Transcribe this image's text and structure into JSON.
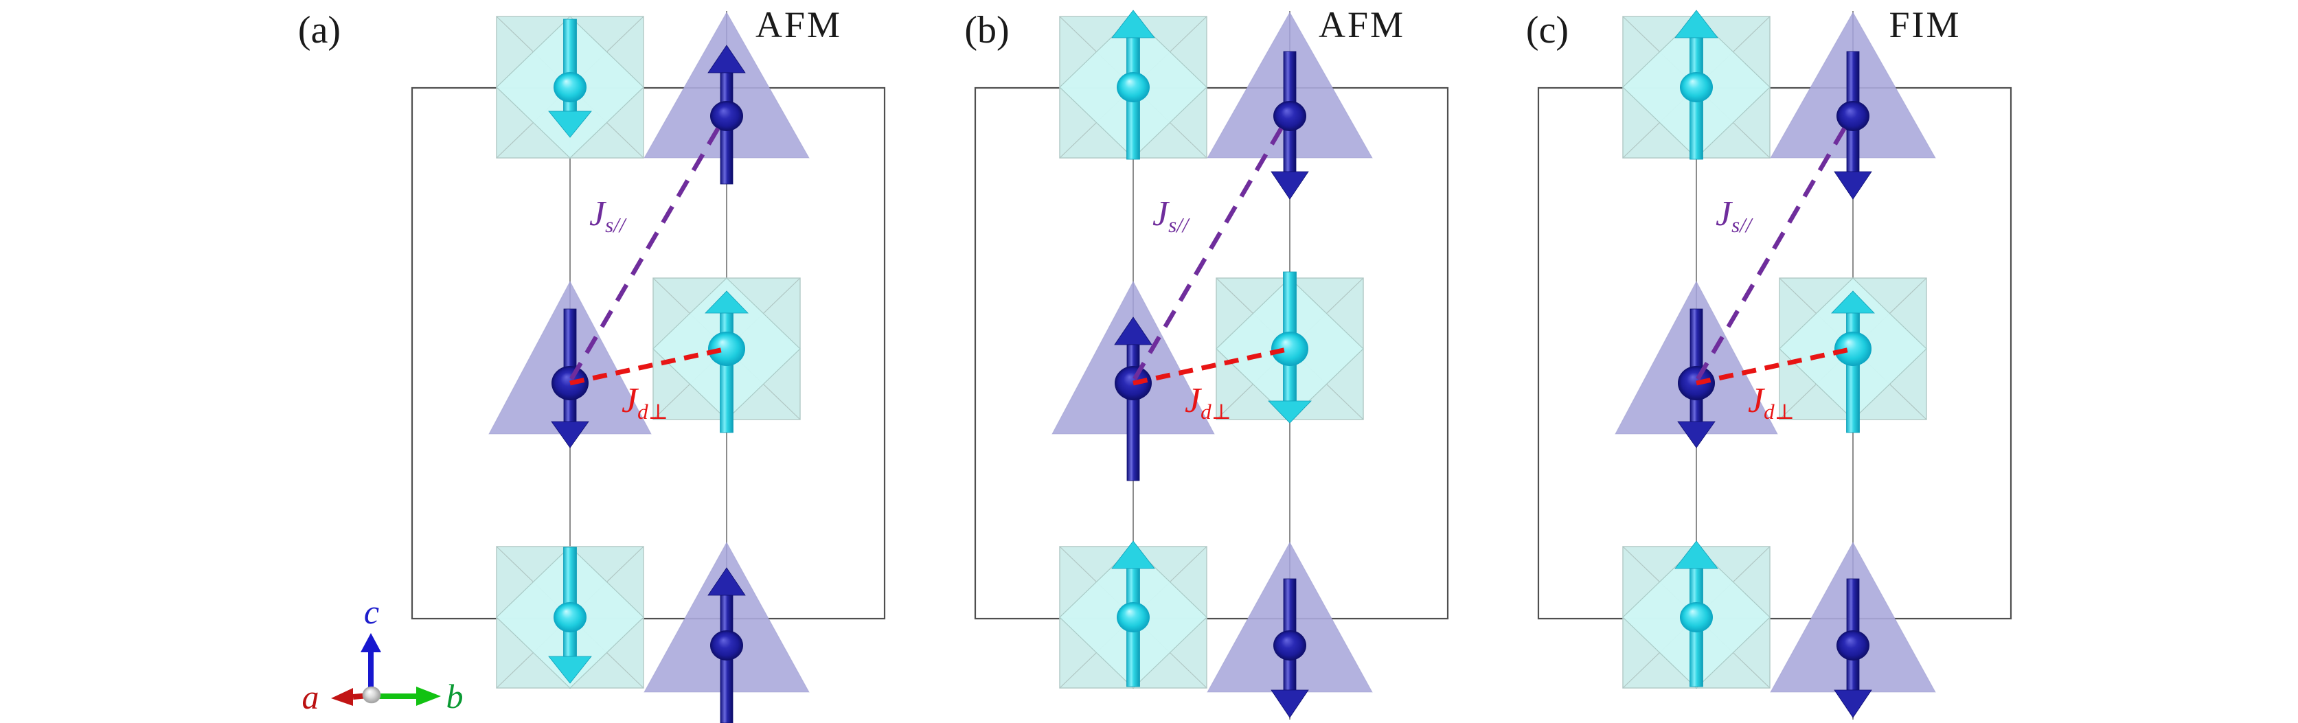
{
  "figure": {
    "background": "#ffffff",
    "panels": [
      {
        "label": "(a)",
        "order_label": "AFM",
        "sites": [
          {
            "row": "top",
            "column": "left",
            "type": "octahedron",
            "ion": "cyan",
            "spin": "down"
          },
          {
            "row": "top",
            "column": "right",
            "type": "tetrahedron",
            "ion": "blue",
            "spin": "up"
          },
          {
            "row": "middle",
            "column": "left",
            "type": "tetrahedron",
            "ion": "blue",
            "spin": "down"
          },
          {
            "row": "middle",
            "column": "right",
            "type": "octahedron",
            "ion": "cyan",
            "spin": "up"
          },
          {
            "row": "bottom",
            "column": "left",
            "type": "octahedron",
            "ion": "cyan",
            "spin": "down"
          },
          {
            "row": "bottom",
            "column": "right",
            "type": "tetrahedron",
            "ion": "blue",
            "spin": "up"
          }
        ]
      },
      {
        "label": "(b)",
        "order_label": "AFM",
        "sites": [
          {
            "row": "top",
            "column": "left",
            "type": "octahedron",
            "ion": "cyan",
            "spin": "up"
          },
          {
            "row": "top",
            "column": "right",
            "type": "tetrahedron",
            "ion": "blue",
            "spin": "down"
          },
          {
            "row": "middle",
            "column": "left",
            "type": "tetrahedron",
            "ion": "blue",
            "spin": "up"
          },
          {
            "row": "middle",
            "column": "right",
            "type": "octahedron",
            "ion": "cyan",
            "spin": "down"
          },
          {
            "row": "bottom",
            "column": "left",
            "type": "octahedron",
            "ion": "cyan",
            "spin": "up"
          },
          {
            "row": "bottom",
            "column": "right",
            "type": "tetrahedron",
            "ion": "blue",
            "spin": "down"
          }
        ]
      },
      {
        "label": "(c)",
        "order_label": "FIM",
        "sites": [
          {
            "row": "top",
            "column": "left",
            "type": "octahedron",
            "ion": "cyan",
            "spin": "up"
          },
          {
            "row": "top",
            "column": "right",
            "type": "tetrahedron",
            "ion": "blue",
            "spin": "down"
          },
          {
            "row": "middle",
            "column": "left",
            "type": "tetrahedron",
            "ion": "blue",
            "spin": "down"
          },
          {
            "row": "middle",
            "column": "right",
            "type": "octahedron",
            "ion": "cyan",
            "spin": "up"
          },
          {
            "row": "bottom",
            "column": "left",
            "type": "octahedron",
            "ion": "cyan",
            "spin": "up"
          },
          {
            "row": "bottom",
            "column": "right",
            "type": "tetrahedron",
            "ion": "blue",
            "spin": "down"
          }
        ]
      }
    ],
    "couplings": {
      "superexchange": {
        "symbol": "J",
        "subscript": "s//",
        "color": "#6f2d9c",
        "style": "dashed"
      },
      "direct": {
        "symbol": "J",
        "subscript": "d⊥",
        "color": "#e81414",
        "style": "dashed"
      }
    },
    "axes": [
      {
        "label": "a",
        "color": "#bb1111",
        "direction": "left"
      },
      {
        "label": "b",
        "color": "#0a9a33",
        "direction": "right"
      },
      {
        "label": "c",
        "color": "#1d1dcc",
        "direction": "up"
      }
    ],
    "colors": {
      "octahedron_fill": "#c3e9e7",
      "octahedron_front": "#cff7f4",
      "tetrahedron_fill": "#abaadb",
      "cyan_ion": "#1ecddf",
      "blue_ion": "#2424ac",
      "unit_cell_line": "#4f4f4f",
      "column_line": "#707070"
    }
  }
}
